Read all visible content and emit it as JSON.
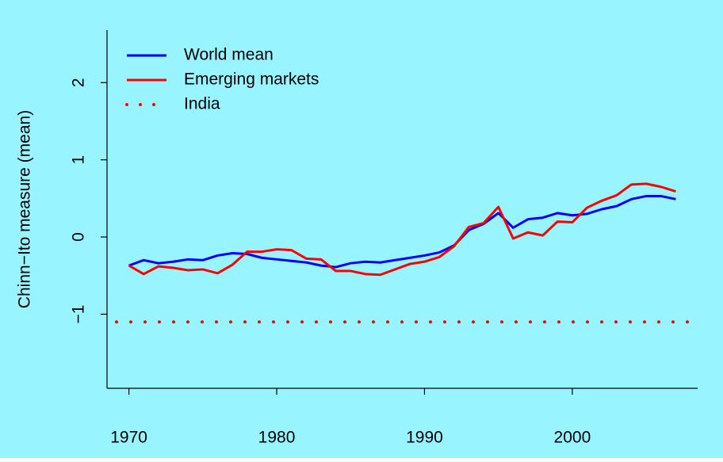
{
  "chart_data": {
    "type": "line",
    "ylabel": "Chinn−Ito measure (mean)",
    "background": "#98f5ff",
    "x": [
      1970,
      1971,
      1972,
      1973,
      1974,
      1975,
      1976,
      1977,
      1978,
      1979,
      1980,
      1981,
      1982,
      1983,
      1984,
      1985,
      1986,
      1987,
      1988,
      1989,
      1990,
      1991,
      1992,
      1993,
      1994,
      1995,
      1996,
      1997,
      1998,
      1999,
      2000,
      2001,
      2002,
      2003,
      2004,
      2005,
      2006,
      2007
    ],
    "series": [
      {
        "name": "World mean",
        "color": "#0000ff",
        "style": "solid",
        "values": [
          -0.37,
          -0.3,
          -0.34,
          -0.32,
          -0.29,
          -0.3,
          -0.24,
          -0.21,
          -0.22,
          -0.27,
          -0.29,
          -0.31,
          -0.33,
          -0.37,
          -0.39,
          -0.34,
          -0.32,
          -0.33,
          -0.3,
          -0.27,
          -0.24,
          -0.2,
          -0.11,
          0.09,
          0.17,
          0.31,
          0.12,
          0.23,
          0.25,
          0.31,
          0.28,
          0.3,
          0.36,
          0.4,
          0.49,
          0.53,
          0.53,
          0.49
        ]
      },
      {
        "name": "Emerging markets",
        "color": "#ff0000",
        "style": "solid",
        "values": [
          -0.37,
          -0.48,
          -0.38,
          -0.4,
          -0.43,
          -0.42,
          -0.47,
          -0.36,
          -0.19,
          -0.19,
          -0.16,
          -0.17,
          -0.28,
          -0.29,
          -0.44,
          -0.44,
          -0.48,
          -0.49,
          -0.42,
          -0.35,
          -0.32,
          -0.26,
          -0.12,
          0.13,
          0.18,
          0.39,
          -0.02,
          0.06,
          0.02,
          0.2,
          0.19,
          0.38,
          0.47,
          0.54,
          0.68,
          0.69,
          0.65,
          0.59
        ]
      },
      {
        "name": "India",
        "color": "#ff0000",
        "style": "dotted",
        "h": -1.1
      }
    ],
    "xlim": [
      1968.52,
      2008.48
    ],
    "xticks": [
      1970,
      1980,
      1990,
      2000
    ],
    "ylim": [
      -1.96,
      2.68
    ],
    "yticks": [
      {
        "value": -1,
        "label": "−1"
      },
      0,
      1,
      2
    ],
    "legend": "top-left"
  }
}
